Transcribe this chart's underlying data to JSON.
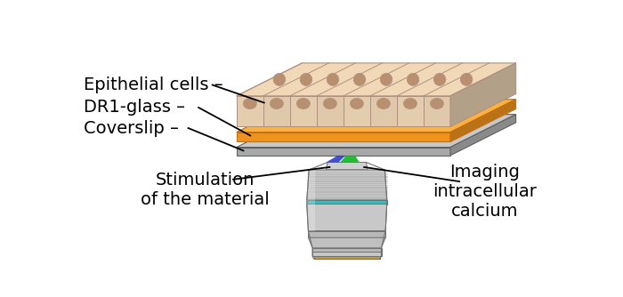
{
  "background_color": "#ffffff",
  "labels": {
    "epithelial_cells": "Epithelial cells –",
    "dr1_glass": "DR1-glass –",
    "coverslip": "Coverslip –",
    "stimulation": "Stimulation\nof the material",
    "imaging": "Imaging\nintracellular\ncalcium"
  },
  "colors": {
    "cell_body": "#dfc9aa",
    "cell_body_light": "#e8d5bb",
    "cell_nucleus": "#b89070",
    "cell_border": "#b09080",
    "cell_side": "#c8aa88",
    "dr1_face": "#f0921e",
    "dr1_top": "#fbb040",
    "dr1_edge": "#c07010",
    "coverslip_face": "#a8a8a8",
    "coverslip_top": "#c8c8c8",
    "coverslip_side": "#888888",
    "coverslip_edge": "#606060",
    "lens_light": "#d8d8d8",
    "lens_mid": "#b8b8b8",
    "lens_dark": "#909090",
    "lens_teal": "#40b8b8",
    "lens_gold": "#c8a030",
    "blue_beam": "#3040d0",
    "green_beam": "#10b820",
    "text_color": "#000000"
  },
  "font_size": 14
}
